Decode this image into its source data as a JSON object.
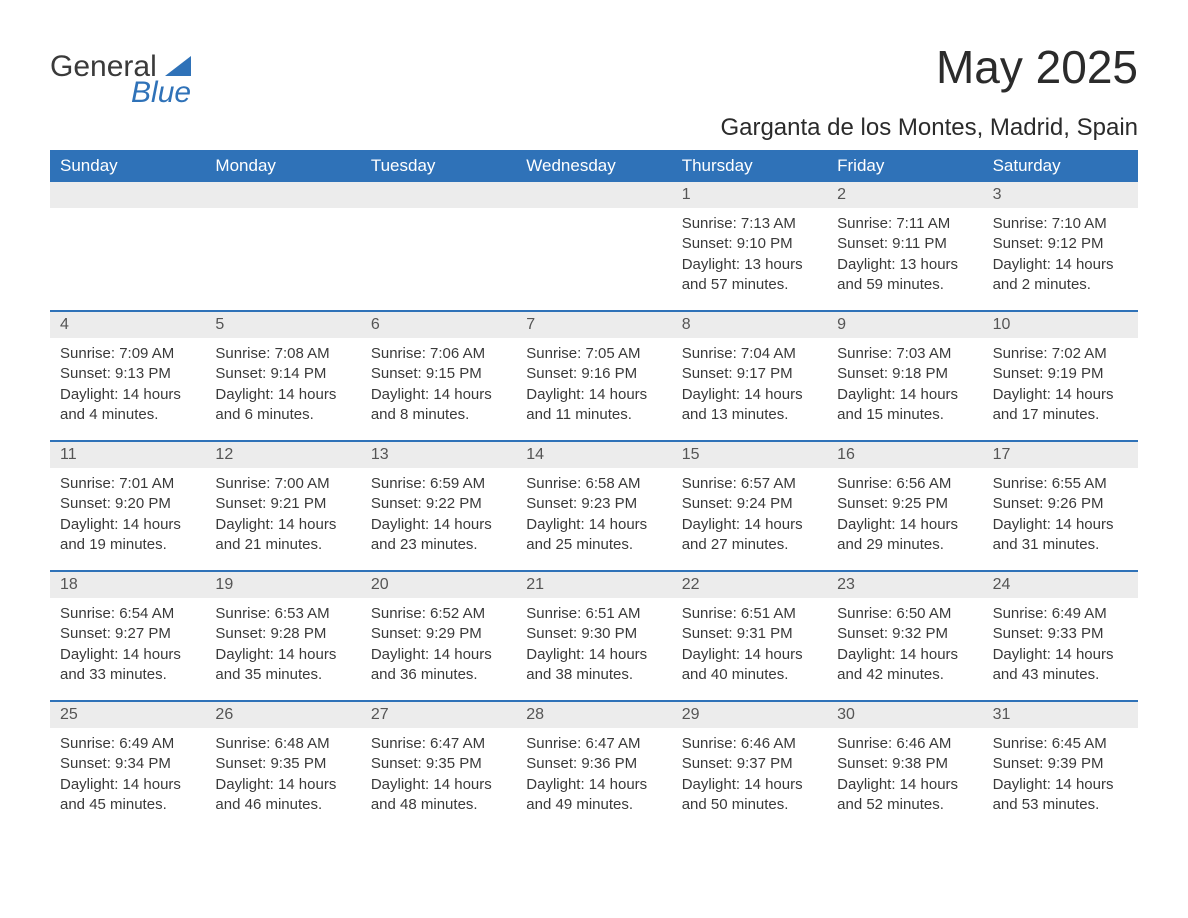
{
  "logo": {
    "word1": "General",
    "word2": "Blue"
  },
  "title": "May 2025",
  "location": "Garganta de los Montes, Madrid, Spain",
  "colors": {
    "header_bg": "#2f72b8",
    "header_text": "#ffffff",
    "daynum_bg": "#ececec",
    "body_text": "#3a3a3a",
    "week_border": "#2f72b8",
    "page_bg": "#ffffff"
  },
  "typography": {
    "title_fontsize": 46,
    "location_fontsize": 24,
    "weekday_fontsize": 17,
    "daynum_fontsize": 16,
    "body_fontsize": 15,
    "font_family": "Arial"
  },
  "layout": {
    "columns": 7,
    "rows": 5,
    "first_day_column_index": 4
  },
  "weekdays": [
    "Sunday",
    "Monday",
    "Tuesday",
    "Wednesday",
    "Thursday",
    "Friday",
    "Saturday"
  ],
  "days": [
    {
      "num": 1,
      "sunrise": "7:13 AM",
      "sunset": "9:10 PM",
      "daylight": "13 hours and 57 minutes."
    },
    {
      "num": 2,
      "sunrise": "7:11 AM",
      "sunset": "9:11 PM",
      "daylight": "13 hours and 59 minutes."
    },
    {
      "num": 3,
      "sunrise": "7:10 AM",
      "sunset": "9:12 PM",
      "daylight": "14 hours and 2 minutes."
    },
    {
      "num": 4,
      "sunrise": "7:09 AM",
      "sunset": "9:13 PM",
      "daylight": "14 hours and 4 minutes."
    },
    {
      "num": 5,
      "sunrise": "7:08 AM",
      "sunset": "9:14 PM",
      "daylight": "14 hours and 6 minutes."
    },
    {
      "num": 6,
      "sunrise": "7:06 AM",
      "sunset": "9:15 PM",
      "daylight": "14 hours and 8 minutes."
    },
    {
      "num": 7,
      "sunrise": "7:05 AM",
      "sunset": "9:16 PM",
      "daylight": "14 hours and 11 minutes."
    },
    {
      "num": 8,
      "sunrise": "7:04 AM",
      "sunset": "9:17 PM",
      "daylight": "14 hours and 13 minutes."
    },
    {
      "num": 9,
      "sunrise": "7:03 AM",
      "sunset": "9:18 PM",
      "daylight": "14 hours and 15 minutes."
    },
    {
      "num": 10,
      "sunrise": "7:02 AM",
      "sunset": "9:19 PM",
      "daylight": "14 hours and 17 minutes."
    },
    {
      "num": 11,
      "sunrise": "7:01 AM",
      "sunset": "9:20 PM",
      "daylight": "14 hours and 19 minutes."
    },
    {
      "num": 12,
      "sunrise": "7:00 AM",
      "sunset": "9:21 PM",
      "daylight": "14 hours and 21 minutes."
    },
    {
      "num": 13,
      "sunrise": "6:59 AM",
      "sunset": "9:22 PM",
      "daylight": "14 hours and 23 minutes."
    },
    {
      "num": 14,
      "sunrise": "6:58 AM",
      "sunset": "9:23 PM",
      "daylight": "14 hours and 25 minutes."
    },
    {
      "num": 15,
      "sunrise": "6:57 AM",
      "sunset": "9:24 PM",
      "daylight": "14 hours and 27 minutes."
    },
    {
      "num": 16,
      "sunrise": "6:56 AM",
      "sunset": "9:25 PM",
      "daylight": "14 hours and 29 minutes."
    },
    {
      "num": 17,
      "sunrise": "6:55 AM",
      "sunset": "9:26 PM",
      "daylight": "14 hours and 31 minutes."
    },
    {
      "num": 18,
      "sunrise": "6:54 AM",
      "sunset": "9:27 PM",
      "daylight": "14 hours and 33 minutes."
    },
    {
      "num": 19,
      "sunrise": "6:53 AM",
      "sunset": "9:28 PM",
      "daylight": "14 hours and 35 minutes."
    },
    {
      "num": 20,
      "sunrise": "6:52 AM",
      "sunset": "9:29 PM",
      "daylight": "14 hours and 36 minutes."
    },
    {
      "num": 21,
      "sunrise": "6:51 AM",
      "sunset": "9:30 PM",
      "daylight": "14 hours and 38 minutes."
    },
    {
      "num": 22,
      "sunrise": "6:51 AM",
      "sunset": "9:31 PM",
      "daylight": "14 hours and 40 minutes."
    },
    {
      "num": 23,
      "sunrise": "6:50 AM",
      "sunset": "9:32 PM",
      "daylight": "14 hours and 42 minutes."
    },
    {
      "num": 24,
      "sunrise": "6:49 AM",
      "sunset": "9:33 PM",
      "daylight": "14 hours and 43 minutes."
    },
    {
      "num": 25,
      "sunrise": "6:49 AM",
      "sunset": "9:34 PM",
      "daylight": "14 hours and 45 minutes."
    },
    {
      "num": 26,
      "sunrise": "6:48 AM",
      "sunset": "9:35 PM",
      "daylight": "14 hours and 46 minutes."
    },
    {
      "num": 27,
      "sunrise": "6:47 AM",
      "sunset": "9:35 PM",
      "daylight": "14 hours and 48 minutes."
    },
    {
      "num": 28,
      "sunrise": "6:47 AM",
      "sunset": "9:36 PM",
      "daylight": "14 hours and 49 minutes."
    },
    {
      "num": 29,
      "sunrise": "6:46 AM",
      "sunset": "9:37 PM",
      "daylight": "14 hours and 50 minutes."
    },
    {
      "num": 30,
      "sunrise": "6:46 AM",
      "sunset": "9:38 PM",
      "daylight": "14 hours and 52 minutes."
    },
    {
      "num": 31,
      "sunrise": "6:45 AM",
      "sunset": "9:39 PM",
      "daylight": "14 hours and 53 minutes."
    }
  ],
  "labels": {
    "sunrise": "Sunrise:",
    "sunset": "Sunset:",
    "daylight": "Daylight:"
  }
}
